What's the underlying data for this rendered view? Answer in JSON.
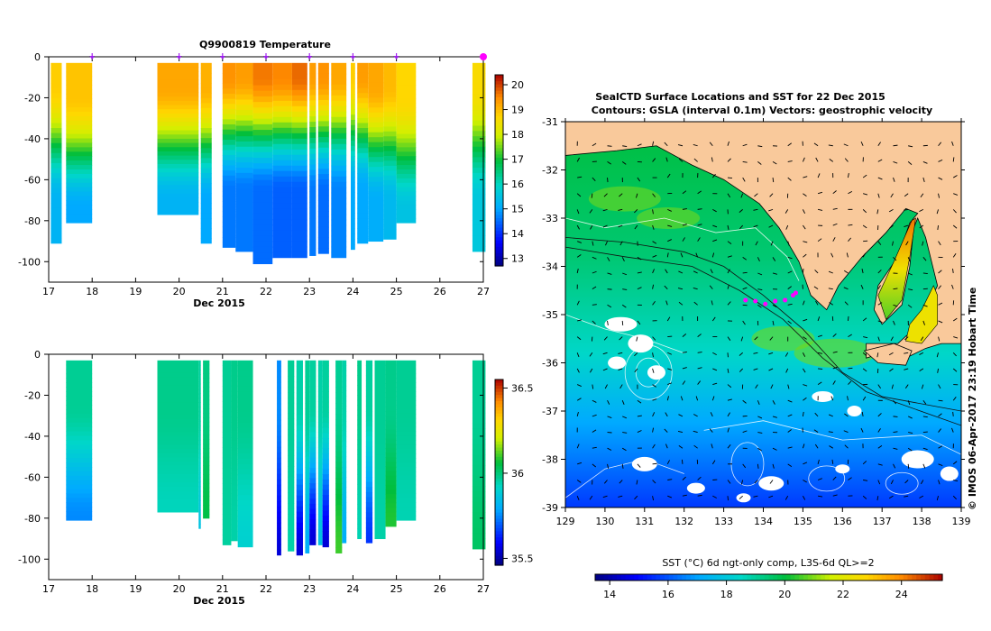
{
  "chart_data": [
    {
      "type": "heatmap",
      "panel": "temperature-section",
      "title": "Q9900819  Temperature",
      "xlabel": "Dec 2015",
      "x_ticks": [
        "17",
        "18",
        "19",
        "20",
        "21",
        "22",
        "23",
        "24",
        "25",
        "26",
        "27"
      ],
      "xlim": [
        17,
        27
      ],
      "y_ticks": [
        "0",
        "-20",
        "-40",
        "-60",
        "-80",
        "-100"
      ],
      "ylim": [
        -110,
        0
      ],
      "colorbar": {
        "ticks": [
          "13",
          "14",
          "15",
          "16",
          "17",
          "18",
          "19",
          "20"
        ],
        "range": [
          12.7,
          20.4
        ]
      },
      "profile_markers_day": [
        18,
        20,
        21,
        22,
        23,
        24,
        25,
        27
      ],
      "surface_marker_day": 27,
      "profiles": [
        {
          "start": 17.05,
          "end": 17.3,
          "bottom": -91,
          "sst": 18.8,
          "mld": 15,
          "deep": 15.2
        },
        {
          "start": 17.4,
          "end": 18.0,
          "bottom": -81,
          "sst": 18.9,
          "mld": 20,
          "deep": 15.0
        },
        {
          "start": 19.5,
          "end": 20.45,
          "bottom": -77,
          "sst": 19.2,
          "mld": 15,
          "deep": 15.2
        },
        {
          "start": 20.5,
          "end": 20.75,
          "bottom": -91,
          "sst": 19.1,
          "mld": 15,
          "deep": 15.0
        },
        {
          "start": 21.0,
          "end": 21.3,
          "bottom": -93,
          "sst": 19.4,
          "mld": 10,
          "deep": 14.6
        },
        {
          "start": 21.3,
          "end": 21.7,
          "bottom": -95,
          "sst": 19.3,
          "mld": 10,
          "deep": 14.6
        },
        {
          "start": 21.7,
          "end": 22.15,
          "bottom": -101,
          "sst": 19.6,
          "mld": 10,
          "deep": 14.5
        },
        {
          "start": 22.15,
          "end": 22.6,
          "bottom": -98,
          "sst": 19.5,
          "mld": 10,
          "deep": 14.4
        },
        {
          "start": 22.6,
          "end": 22.95,
          "bottom": -98,
          "sst": 19.7,
          "mld": 10,
          "deep": 14.4
        },
        {
          "start": 23.0,
          "end": 23.15,
          "bottom": -97,
          "sst": 19.3,
          "mld": 10,
          "deep": 14.6
        },
        {
          "start": 23.2,
          "end": 23.45,
          "bottom": -96,
          "sst": 19.4,
          "mld": 10,
          "deep": 14.5
        },
        {
          "start": 23.5,
          "end": 23.85,
          "bottom": -98,
          "sst": 19.2,
          "mld": 10,
          "deep": 14.7
        },
        {
          "start": 23.95,
          "end": 24.05,
          "bottom": -94,
          "sst": 18.8,
          "mld": 10,
          "deep": 15.0
        },
        {
          "start": 24.1,
          "end": 24.35,
          "bottom": -91,
          "sst": 19.3,
          "mld": 10,
          "deep": 15.0
        },
        {
          "start": 24.35,
          "end": 24.7,
          "bottom": -90,
          "sst": 19.2,
          "mld": 15,
          "deep": 15.1
        },
        {
          "start": 24.7,
          "end": 25.0,
          "bottom": -89,
          "sst": 19.0,
          "mld": 15,
          "deep": 15.3
        },
        {
          "start": 25.0,
          "end": 25.45,
          "bottom": -81,
          "sst": 18.7,
          "mld": 20,
          "deep": 15.5
        },
        {
          "start": 26.75,
          "end": 27.05,
          "bottom": -95,
          "sst": 18.6,
          "mld": 15,
          "deep": 15.6
        }
      ]
    },
    {
      "type": "heatmap",
      "panel": "salinity-section",
      "xlabel": "Dec 2015",
      "x_ticks": [
        "17",
        "18",
        "19",
        "20",
        "21",
        "22",
        "23",
        "24",
        "25",
        "26",
        "27"
      ],
      "xlim": [
        17,
        27
      ],
      "y_ticks": [
        "0",
        "-20",
        "-40",
        "-60",
        "-80",
        "-100"
      ],
      "ylim": [
        -110,
        0
      ],
      "colorbar": {
        "ticks": [
          "35.5",
          "36",
          "36.5"
        ],
        "range": [
          35.46,
          36.55
        ]
      },
      "profiles": [
        {
          "start": 17.4,
          "end": 18.0,
          "bottom": -81,
          "surf": 35.97,
          "deep": 35.75
        },
        {
          "start": 19.5,
          "end": 20.45,
          "bottom": -77,
          "surf": 35.98,
          "deep": 35.93
        },
        {
          "start": 20.45,
          "end": 20.5,
          "bottom": -85,
          "surf": 35.96,
          "deep": 35.86
        },
        {
          "start": 20.55,
          "end": 20.7,
          "bottom": -80,
          "surf": 35.99,
          "deep": 36.05
        },
        {
          "start": 21.0,
          "end": 21.2,
          "bottom": -93,
          "surf": 35.97,
          "deep": 35.96
        },
        {
          "start": 21.2,
          "end": 21.35,
          "bottom": -91,
          "surf": 35.98,
          "deep": 35.95
        },
        {
          "start": 21.35,
          "end": 21.7,
          "bottom": -94,
          "surf": 35.98,
          "deep": 35.9
        },
        {
          "start": 22.25,
          "end": 22.35,
          "bottom": -98,
          "surf": 35.75,
          "deep": 35.55
        },
        {
          "start": 22.5,
          "end": 22.65,
          "bottom": -96,
          "surf": 35.97,
          "deep": 35.95
        },
        {
          "start": 22.7,
          "end": 22.85,
          "bottom": -98,
          "surf": 35.95,
          "deep": 35.55
        },
        {
          "start": 22.9,
          "end": 23.0,
          "bottom": -97,
          "surf": 35.97,
          "deep": 35.8
        },
        {
          "start": 23.0,
          "end": 23.15,
          "bottom": -93,
          "surf": 35.96,
          "deep": 35.55
        },
        {
          "start": 23.2,
          "end": 23.3,
          "bottom": -93,
          "surf": 35.95,
          "deep": 35.85
        },
        {
          "start": 23.3,
          "end": 23.45,
          "bottom": -94,
          "surf": 35.96,
          "deep": 35.55
        },
        {
          "start": 23.6,
          "end": 23.75,
          "bottom": -97,
          "surf": 35.97,
          "deep": 36.1
        },
        {
          "start": 23.75,
          "end": 23.85,
          "bottom": -92,
          "surf": 35.95,
          "deep": 35.8
        },
        {
          "start": 24.1,
          "end": 24.2,
          "bottom": -90,
          "surf": 35.98,
          "deep": 35.94
        },
        {
          "start": 24.3,
          "end": 24.45,
          "bottom": -92,
          "surf": 35.96,
          "deep": 35.65
        },
        {
          "start": 24.5,
          "end": 24.75,
          "bottom": -90,
          "surf": 35.97,
          "deep": 35.95
        },
        {
          "start": 24.75,
          "end": 25.0,
          "bottom": -84,
          "surf": 35.98,
          "deep": 36.08
        },
        {
          "start": 25.0,
          "end": 25.45,
          "bottom": -81,
          "surf": 35.97,
          "deep": 35.94
        },
        {
          "start": 26.75,
          "end": 27.05,
          "bottom": -95,
          "surf": 35.97,
          "deep": 36.02
        }
      ]
    },
    {
      "type": "heatmap",
      "panel": "sst-map",
      "title": "SealCTD Surface Locations and SST for 22 Dec 2015",
      "subtitle": "Contours: GSLA (interval 0.1m) Vectors: geostrophic velocity",
      "xlim": [
        129,
        139
      ],
      "ylim": [
        -39,
        -31
      ],
      "x_ticks": [
        "129",
        "130",
        "131",
        "132",
        "133",
        "134",
        "135",
        "136",
        "137",
        "138",
        "139"
      ],
      "y_ticks": [
        "-31",
        "-32",
        "-33",
        "-34",
        "-35",
        "-36",
        "-37",
        "-38",
        "-39"
      ],
      "colorbar_label": "SST (°C) 6d ngt-only comp, L3S-6d QL>=2",
      "colorbar": {
        "ticks": [
          "14",
          "16",
          "18",
          "20",
          "22",
          "24"
        ],
        "range": [
          13.5,
          25.4
        ]
      },
      "side_label": "© IMOS 06-Apr-2017 23:19 Hobart Time",
      "seal_locations": [
        [
          133.55,
          -34.7
        ],
        [
          133.8,
          -34.72
        ],
        [
          134.05,
          -34.78
        ],
        [
          134.3,
          -34.72
        ],
        [
          134.55,
          -34.7
        ],
        [
          134.75,
          -34.6
        ],
        [
          134.82,
          -34.55
        ]
      ]
    }
  ]
}
